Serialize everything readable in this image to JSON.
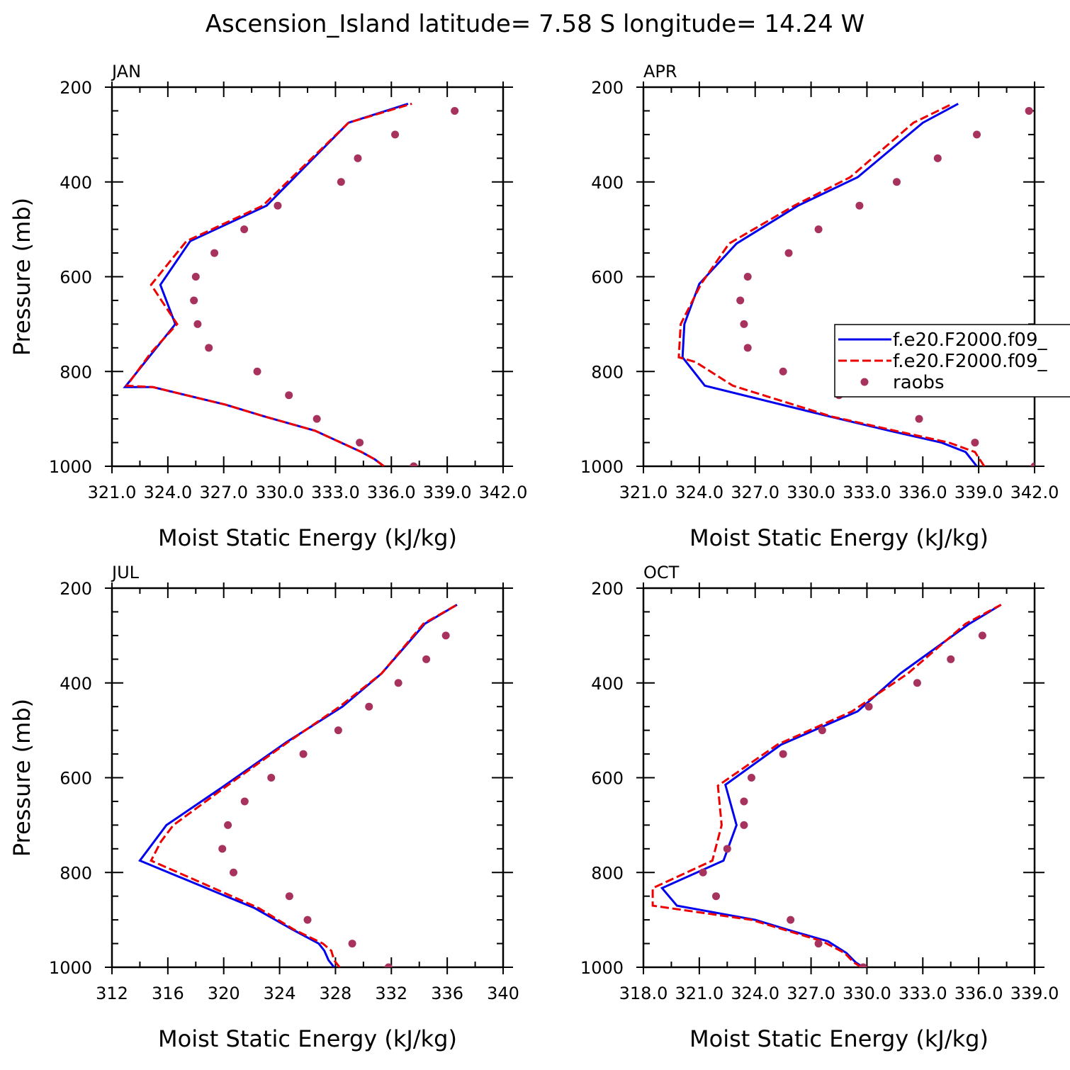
{
  "suptitle": "Ascension_Island  latitude= 7.58 S longitude= 14.24 W",
  "colors": {
    "model1": "#0000ee",
    "model2": "#ee0000",
    "obs": "#a8325e"
  },
  "chart_data": [
    {
      "type": "line",
      "title": "JAN",
      "xlabel": "Moist Static Energy (kJ/kg)",
      "ylabel": "Pressure (mb)",
      "xlim": [
        321,
        342
      ],
      "ylim": [
        1000,
        200
      ],
      "y_reversed": true,
      "xticks": [
        321,
        324,
        327,
        330,
        333,
        336,
        339,
        342
      ],
      "xtick_labels": [
        "321.0",
        "324.0",
        "327.0",
        "330.0",
        "333.0",
        "336.0",
        "339.0",
        "342.0"
      ],
      "yticks": [
        200,
        400,
        600,
        800,
        1000
      ],
      "ytick_labels": [
        "200",
        "400",
        "600",
        "800",
        "1000"
      ],
      "series": [
        {
          "name": "f.e20.F2000.f09_",
          "style": "solid",
          "x": [
            335.6,
            335.1,
            334.4,
            331.9,
            329.2,
            327.1,
            323.2,
            321.7,
            324.4,
            323.6,
            325.2,
            329.3,
            333.7,
            336.9
          ],
          "y": [
            1000,
            985,
            970,
            925,
            895,
            870,
            833,
            833,
            700,
            617,
            525,
            450,
            275,
            235
          ]
        },
        {
          "name": "f.e20.F2000.f09_",
          "style": "dashed",
          "x": [
            335.6,
            335.1,
            334.4,
            331.9,
            329.2,
            327.1,
            323.2,
            321.8,
            323.1,
            324.5,
            323.1,
            325.0,
            329.1,
            333.7,
            337.1
          ],
          "y": [
            1000,
            985,
            970,
            925,
            895,
            870,
            833,
            830,
            760,
            700,
            617,
            525,
            450,
            275,
            235
          ]
        },
        {
          "name": "raobs",
          "style": "points",
          "x": [
            337.2,
            334.3,
            332.0,
            330.5,
            328.8,
            326.2,
            325.6,
            325.4,
            325.5,
            326.5,
            328.1,
            329.9,
            333.3,
            334.2,
            336.2,
            339.4
          ],
          "y": [
            1000,
            950,
            900,
            850,
            800,
            750,
            700,
            650,
            600,
            550,
            500,
            450,
            400,
            350,
            300,
            250
          ]
        }
      ]
    },
    {
      "type": "line",
      "title": "APR",
      "xlabel": "Moist Static Energy (kJ/kg)",
      "ylabel": "",
      "xlim": [
        321,
        342
      ],
      "ylim": [
        1000,
        200
      ],
      "y_reversed": true,
      "xticks": [
        321,
        324,
        327,
        330,
        333,
        336,
        339,
        342
      ],
      "xtick_labels": [
        "321.0",
        "324.0",
        "327.0",
        "330.0",
        "333.0",
        "336.0",
        "339.0",
        "342.0"
      ],
      "yticks": [
        200,
        400,
        600,
        800,
        1000
      ],
      "ytick_labels": [
        "200",
        "400",
        "600",
        "800",
        "1000"
      ],
      "legend": {
        "placement": "right"
      },
      "series": [
        {
          "name": "f.e20.F2000.f09_",
          "style": "solid",
          "x": [
            338.9,
            338.3,
            337.0,
            334.2,
            331.0,
            324.3,
            323.1,
            323.2,
            324.0,
            326.0,
            329.3,
            332.5,
            336.0,
            337.9
          ],
          "y": [
            1000,
            970,
            950,
            925,
            895,
            830,
            770,
            700,
            615,
            530,
            450,
            390,
            275,
            235
          ]
        },
        {
          "name": "f.e20.F2000.f09_",
          "style": "dashed",
          "x": [
            339.3,
            338.8,
            337.4,
            334.5,
            331.1,
            325.8,
            323.8,
            322.9,
            323.0,
            324.1,
            325.6,
            329.1,
            332.1,
            335.5,
            337.6
          ],
          "y": [
            1000,
            970,
            950,
            925,
            895,
            830,
            780,
            770,
            700,
            615,
            530,
            450,
            390,
            275,
            235
          ]
        },
        {
          "name": "raobs",
          "style": "points",
          "x": [
            342.0,
            338.8,
            335.8,
            331.5,
            328.5,
            326.6,
            326.4,
            326.2,
            326.6,
            328.8,
            330.4,
            332.6,
            334.6,
            336.8,
            338.9,
            341.7
          ],
          "y": [
            1000,
            950,
            900,
            850,
            800,
            750,
            700,
            650,
            600,
            550,
            500,
            450,
            400,
            350,
            300,
            250
          ]
        }
      ]
    },
    {
      "type": "line",
      "title": "JUL",
      "xlabel": "Moist Static Energy (kJ/kg)",
      "ylabel": "Pressure (mb)",
      "xlim": [
        312,
        340
      ],
      "ylim": [
        1000,
        200
      ],
      "y_reversed": true,
      "xticks": [
        312,
        316,
        320,
        324,
        328,
        332,
        336,
        340
      ],
      "xtick_labels": [
        "312",
        "316",
        "320",
        "324",
        "328",
        "332",
        "336",
        "340"
      ],
      "yticks": [
        200,
        400,
        600,
        800,
        1000
      ],
      "ytick_labels": [
        "200",
        "400",
        "600",
        "800",
        "1000"
      ],
      "series": [
        {
          "name": "f.e20.F2000.f09_",
          "style": "solid",
          "x": [
            327.9,
            327.5,
            327.2,
            326.8,
            324.9,
            322.2,
            314.0,
            315.9,
            319.9,
            324.5,
            328.5,
            331.3,
            334.4,
            336.7
          ],
          "y": [
            1000,
            985,
            965,
            950,
            920,
            875,
            775,
            700,
            620,
            525,
            450,
            380,
            275,
            235
          ]
        },
        {
          "name": "f.e20.F2000.f09_",
          "style": "dashed",
          "x": [
            328.3,
            327.9,
            327.7,
            327.1,
            325.0,
            322.5,
            314.8,
            315.5,
            316.4,
            320.1,
            324.6,
            328.3,
            331.3,
            334.3,
            336.7
          ],
          "y": [
            1000,
            985,
            965,
            950,
            920,
            875,
            775,
            735,
            700,
            620,
            525,
            450,
            380,
            275,
            235
          ]
        },
        {
          "name": "raobs",
          "style": "points",
          "x": [
            331.8,
            329.2,
            326.0,
            324.7,
            320.7,
            319.9,
            320.3,
            321.5,
            323.4,
            325.7,
            328.2,
            330.4,
            332.5,
            334.5,
            335.9
          ],
          "y": [
            1000,
            950,
            900,
            850,
            800,
            750,
            700,
            650,
            600,
            550,
            500,
            450,
            400,
            350,
            300
          ]
        }
      ]
    },
    {
      "type": "line",
      "title": "OCT",
      "xlabel": "Moist Static Energy (kJ/kg)",
      "ylabel": "",
      "xlim": [
        318,
        339
      ],
      "ylim": [
        1000,
        200
      ],
      "y_reversed": true,
      "xticks": [
        318,
        321,
        324,
        327,
        330,
        333,
        336,
        339
      ],
      "xtick_labels": [
        "318.0",
        "321.0",
        "324.0",
        "327.0",
        "330.0",
        "333.0",
        "336.0",
        "339.0"
      ],
      "yticks": [
        200,
        400,
        600,
        800,
        1000
      ],
      "ytick_labels": [
        "200",
        "400",
        "600",
        "800",
        "1000"
      ],
      "series": [
        {
          "name": "f.e20.F2000.f09_",
          "style": "solid",
          "x": [
            329.8,
            329.4,
            328.9,
            327.9,
            326.1,
            324.0,
            319.8,
            319.0,
            322.3,
            323.0,
            322.4,
            325.4,
            329.5,
            331.8,
            335.5,
            337.2
          ],
          "y": [
            1000,
            990,
            970,
            945,
            925,
            900,
            870,
            833,
            775,
            700,
            615,
            530,
            460,
            380,
            275,
            235
          ]
        },
        {
          "name": "f.e20.F2000.f09_",
          "style": "dashed",
          "x": [
            329.7,
            329.3,
            328.8,
            327.6,
            325.9,
            323.8,
            318.5,
            318.5,
            321.7,
            322.2,
            322.0,
            325.2,
            329.2,
            332.2,
            335.3,
            337.2
          ],
          "y": [
            1000,
            990,
            970,
            945,
            925,
            900,
            870,
            833,
            775,
            700,
            617,
            530,
            460,
            380,
            275,
            235
          ]
        },
        {
          "name": "raobs",
          "style": "points",
          "x": [
            329.8,
            327.4,
            325.9,
            321.9,
            321.2,
            322.5,
            323.4,
            323.4,
            323.8,
            325.5,
            327.6,
            330.1,
            332.7,
            334.5,
            336.2
          ],
          "y": [
            1000,
            950,
            900,
            850,
            800,
            750,
            700,
            650,
            600,
            550,
            500,
            450,
            400,
            350,
            300
          ]
        }
      ]
    }
  ]
}
